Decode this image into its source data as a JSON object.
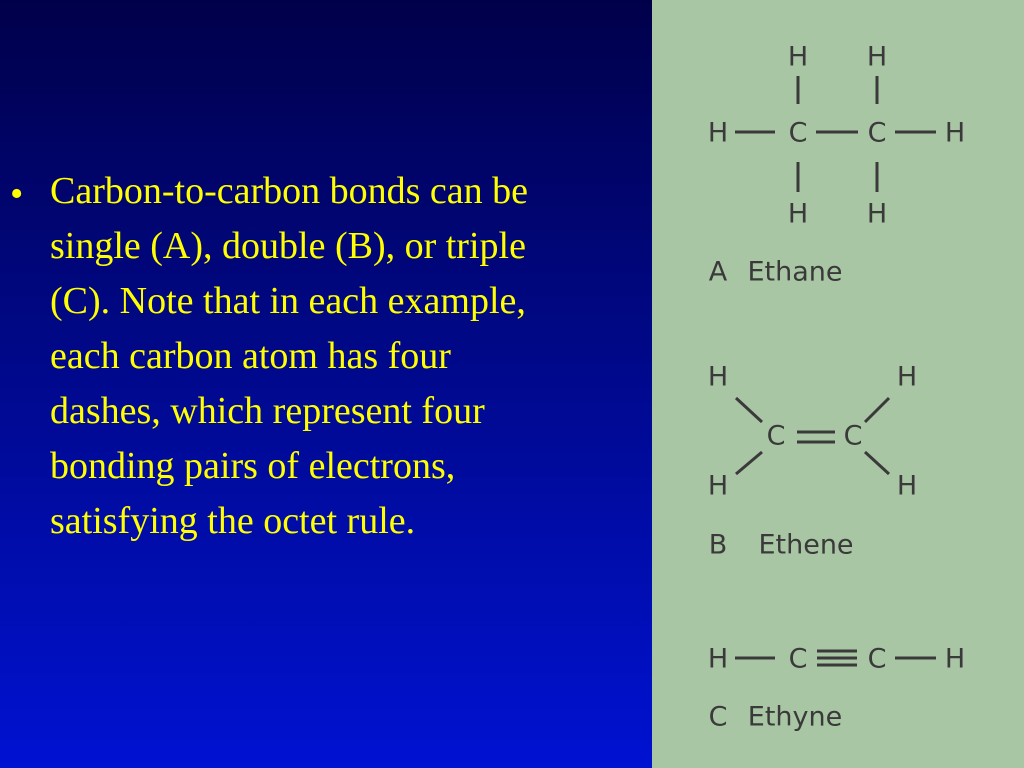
{
  "bullet": {
    "lines": [
      "Carbon-to-carbon bonds can be",
      "single (A), double (B), or triple",
      "(C). Note that in each example,",
      "each carbon atom has four",
      "dashes, which represent four",
      "bonding pairs of electrons,",
      "satisfying the octet rule."
    ]
  },
  "molecules": [
    {
      "letter": "A",
      "name": "Ethane",
      "atoms": [
        "H",
        "H",
        "H",
        "C",
        "C",
        "H",
        "H",
        "H"
      ]
    },
    {
      "letter": "B",
      "name": "Ethene",
      "atoms": [
        "H",
        "H",
        "C",
        "C",
        "H",
        "H"
      ]
    },
    {
      "letter": "C",
      "name": "Ethyne",
      "atoms": [
        "H",
        "C",
        "C",
        "H"
      ]
    }
  ]
}
